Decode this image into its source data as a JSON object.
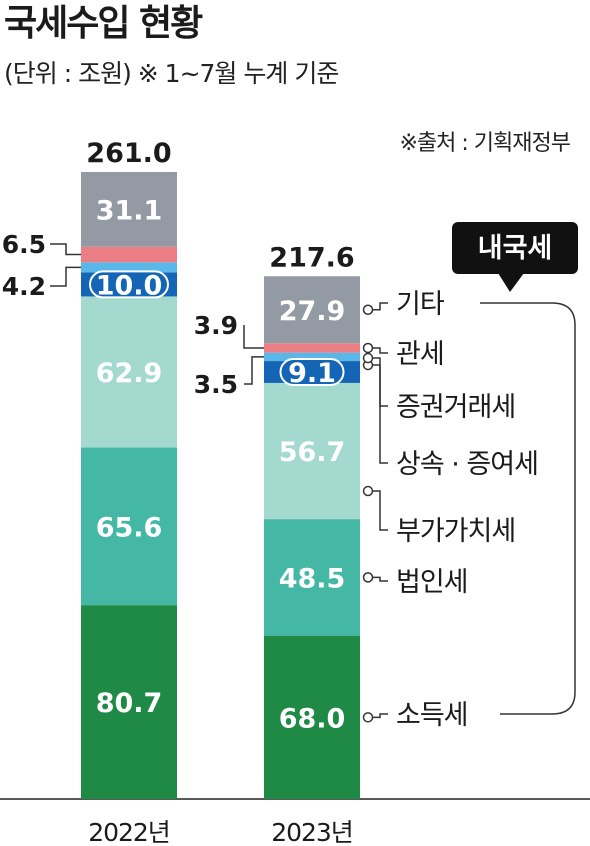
{
  "title": "국세수입 현황",
  "subtitle": "(단위 : 조원)  ※ 1~7월 누계 기준",
  "source": "※출처 : 기획재정부",
  "bracket_label": "내국세",
  "chart_data": {
    "type": "bar",
    "stacked": true,
    "categories": [
      "2022년",
      "2023년"
    ],
    "totals": [
      "261.0",
      "217.6"
    ],
    "series": [
      {
        "name": "소득세",
        "values": [
          80.7,
          68.0
        ],
        "color": "#1f8a45",
        "label_color": "#ffffff"
      },
      {
        "name": "법인세",
        "values": [
          65.6,
          48.5
        ],
        "color": "#44b7a5",
        "label_color": "#ffffff"
      },
      {
        "name": "부가가치세",
        "values": [
          62.9,
          56.7
        ],
        "color": "#a4d9cf",
        "label_color": "#ffffff"
      },
      {
        "name": "상속 · 증여세",
        "values": [
          10.0,
          9.1
        ],
        "color": "#1565b6",
        "label_color": "#ffffff",
        "pill": true
      },
      {
        "name": "증권거래세",
        "values": [
          4.2,
          3.5
        ],
        "color": "#5ab7ea"
      },
      {
        "name": "관세",
        "values": [
          6.5,
          3.9
        ],
        "color": "#ec7e86"
      },
      {
        "name": "기타",
        "values": [
          31.1,
          27.9
        ],
        "color": "#949aa4",
        "label_color": "#ffffff"
      }
    ],
    "legend_placement": "right",
    "grid": false,
    "ylim": [
      0,
      261.0
    ]
  }
}
